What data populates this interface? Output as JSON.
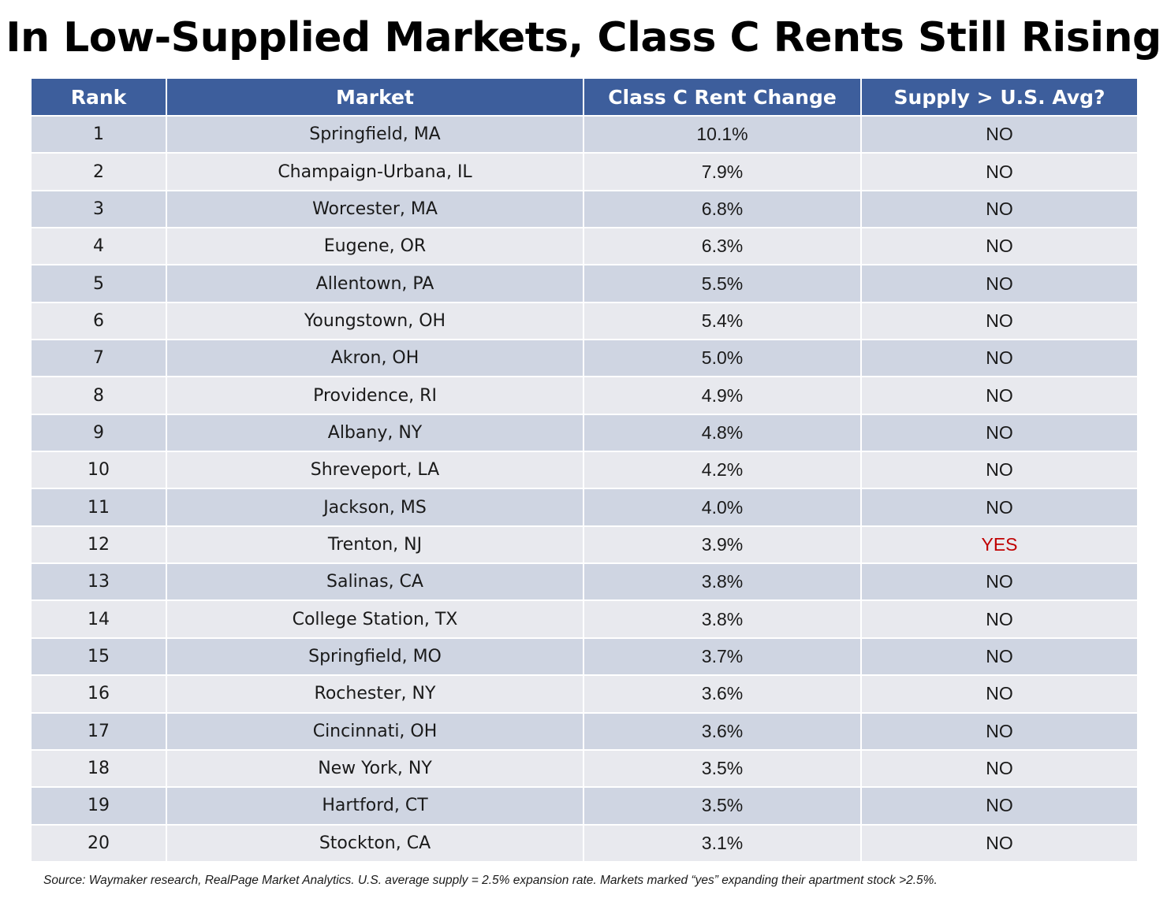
{
  "title": "In Low-Supplied Markets, Class C Rents Still Rising",
  "colors": {
    "header_bg": "#3d5e9c",
    "row_odd_bg": "#cfd5e2",
    "row_even_bg": "#e8e9ee",
    "yes_text": "#c00000"
  },
  "table": {
    "headers": [
      "Rank",
      "Market",
      "Class C Rent Change",
      "Supply > U.S. Avg?"
    ],
    "rows": [
      {
        "rank": "1",
        "market": "Springfield, MA",
        "rent_change": "10.1%",
        "supply_above_avg": "NO"
      },
      {
        "rank": "2",
        "market": "Champaign-Urbana, IL",
        "rent_change": "7.9%",
        "supply_above_avg": "NO"
      },
      {
        "rank": "3",
        "market": "Worcester, MA",
        "rent_change": "6.8%",
        "supply_above_avg": "NO"
      },
      {
        "rank": "4",
        "market": "Eugene, OR",
        "rent_change": "6.3%",
        "supply_above_avg": "NO"
      },
      {
        "rank": "5",
        "market": "Allentown, PA",
        "rent_change": "5.5%",
        "supply_above_avg": "NO"
      },
      {
        "rank": "6",
        "market": "Youngstown, OH",
        "rent_change": "5.4%",
        "supply_above_avg": "NO"
      },
      {
        "rank": "7",
        "market": "Akron, OH",
        "rent_change": "5.0%",
        "supply_above_avg": "NO"
      },
      {
        "rank": "8",
        "market": "Providence, RI",
        "rent_change": "4.9%",
        "supply_above_avg": "NO"
      },
      {
        "rank": "9",
        "market": "Albany, NY",
        "rent_change": "4.8%",
        "supply_above_avg": "NO"
      },
      {
        "rank": "10",
        "market": "Shreveport, LA",
        "rent_change": "4.2%",
        "supply_above_avg": "NO"
      },
      {
        "rank": "11",
        "market": "Jackson, MS",
        "rent_change": "4.0%",
        "supply_above_avg": "NO"
      },
      {
        "rank": "12",
        "market": "Trenton, NJ",
        "rent_change": "3.9%",
        "supply_above_avg": "YES"
      },
      {
        "rank": "13",
        "market": "Salinas, CA",
        "rent_change": "3.8%",
        "supply_above_avg": "NO"
      },
      {
        "rank": "14",
        "market": "College Station, TX",
        "rent_change": "3.8%",
        "supply_above_avg": "NO"
      },
      {
        "rank": "15",
        "market": "Springfield, MO",
        "rent_change": "3.7%",
        "supply_above_avg": "NO"
      },
      {
        "rank": "16",
        "market": "Rochester, NY",
        "rent_change": "3.6%",
        "supply_above_avg": "NO"
      },
      {
        "rank": "17",
        "market": "Cincinnati, OH",
        "rent_change": "3.6%",
        "supply_above_avg": "NO"
      },
      {
        "rank": "18",
        "market": "New York, NY",
        "rent_change": "3.5%",
        "supply_above_avg": "NO"
      },
      {
        "rank": "19",
        "market": "Hartford, CT",
        "rent_change": "3.5%",
        "supply_above_avg": "NO"
      },
      {
        "rank": "20",
        "market": "Stockton, CA",
        "rent_change": "3.1%",
        "supply_above_avg": "NO"
      }
    ]
  },
  "source": "Source: Waymaker research, RealPage Market Analytics. U.S. average supply = 2.5% expansion rate. Markets marked “yes” expanding their apartment stock >2.5%."
}
